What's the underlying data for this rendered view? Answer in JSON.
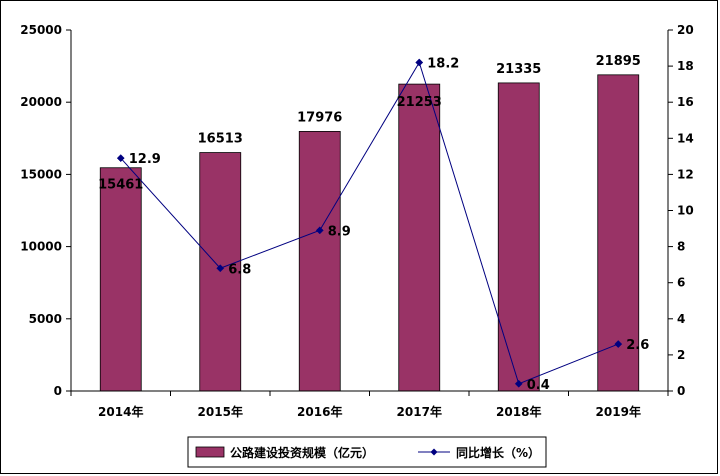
{
  "chart_data": {
    "type": "bar",
    "categories": [
      "2014年",
      "2015年",
      "2016年",
      "2017年",
      "2018年",
      "2019年"
    ],
    "series": [
      {
        "name": "公路建设投资规模（亿元）",
        "kind": "bar",
        "axis": "left",
        "values": [
          15461,
          16513,
          17976,
          21253,
          21335,
          21895
        ],
        "labels": [
          "15461",
          "16513",
          "17976",
          "21253",
          "21335",
          "21895"
        ],
        "color": "#993366"
      },
      {
        "name": "同比增长（%）",
        "kind": "line",
        "axis": "right",
        "values": [
          12.9,
          6.8,
          8.9,
          18.2,
          0.4,
          2.6
        ],
        "labels": [
          "12.9",
          "6.8",
          "8.9",
          "18.2",
          "0.4",
          "2.6"
        ],
        "color": "#000080"
      }
    ],
    "ylim_left": [
      0,
      25000
    ],
    "yticks_left": [
      0,
      5000,
      10000,
      15000,
      20000,
      25000
    ],
    "ylim_right": [
      0,
      20
    ],
    "yticks_right": [
      0,
      2,
      4,
      6,
      8,
      10,
      12,
      14,
      16,
      18,
      20
    ],
    "grid": false,
    "legend_position": "bottom"
  }
}
